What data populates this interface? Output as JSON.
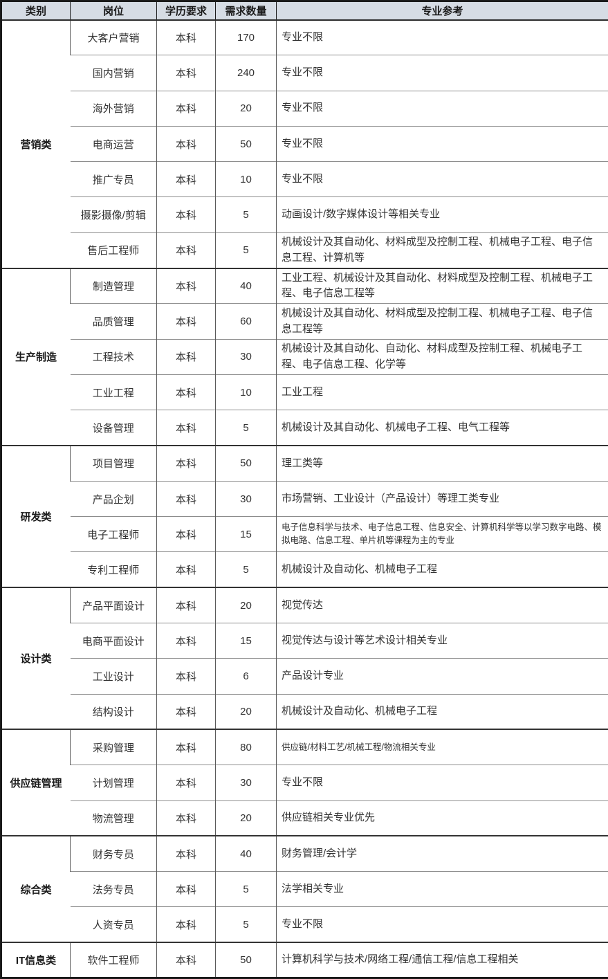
{
  "table": {
    "headers": [
      "类别",
      "岗位",
      "学历要求",
      "需求数量",
      "专业参考"
    ],
    "sections": [
      {
        "category": "营销类",
        "rows": [
          {
            "position": "大客户营销",
            "education": "本科",
            "count": "170",
            "majors": "专业不限",
            "small_text": false
          },
          {
            "position": "国内营销",
            "education": "本科",
            "count": "240",
            "majors": "专业不限",
            "small_text": false
          },
          {
            "position": "海外营销",
            "education": "本科",
            "count": "20",
            "majors": "专业不限",
            "small_text": false
          },
          {
            "position": "电商运营",
            "education": "本科",
            "count": "50",
            "majors": "专业不限",
            "small_text": false
          },
          {
            "position": "推广专员",
            "education": "本科",
            "count": "10",
            "majors": "专业不限",
            "small_text": false
          },
          {
            "position": "摄影摄像/剪辑",
            "education": "本科",
            "count": "5",
            "majors": "动画设计/数字媒体设计等相关专业",
            "small_text": false
          },
          {
            "position": "售后工程师",
            "education": "本科",
            "count": "5",
            "majors": "机械设计及其自动化、材料成型及控制工程、机械电子工程、电子信息工程、计算机等",
            "small_text": false
          }
        ]
      },
      {
        "category": "生产制造",
        "rows": [
          {
            "position": "制造管理",
            "education": "本科",
            "count": "40",
            "majors": "工业工程、机械设计及其自动化、材料成型及控制工程、机械电子工程、电子信息工程等",
            "small_text": false
          },
          {
            "position": "品质管理",
            "education": "本科",
            "count": "60",
            "majors": "机械设计及其自动化、材料成型及控制工程、机械电子工程、电子信息工程等",
            "small_text": false
          },
          {
            "position": "工程技术",
            "education": "本科",
            "count": "30",
            "majors": "机械设计及其自动化、自动化、材料成型及控制工程、机械电子工程、电子信息工程、化学等",
            "small_text": false
          },
          {
            "position": "工业工程",
            "education": "本科",
            "count": "10",
            "majors": "工业工程",
            "small_text": false
          },
          {
            "position": "设备管理",
            "education": "本科",
            "count": "5",
            "majors": "机械设计及其自动化、机械电子工程、电气工程等",
            "small_text": false
          }
        ]
      },
      {
        "category": "研发类",
        "rows": [
          {
            "position": "项目管理",
            "education": "本科",
            "count": "50",
            "majors": "理工类等",
            "small_text": false
          },
          {
            "position": "产品企划",
            "education": "本科",
            "count": "30",
            "majors": "市场营销、工业设计（产品设计）等理工类专业",
            "small_text": false
          },
          {
            "position": "电子工程师",
            "education": "本科",
            "count": "15",
            "majors": "电子信息科学与技术、电子信息工程、信息安全、计算机科学等以学习数字电路、模拟电路、信息工程、单片机等课程为主的专业",
            "small_text": true
          },
          {
            "position": "专利工程师",
            "education": "本科",
            "count": "5",
            "majors": "机械设计及自动化、机械电子工程",
            "small_text": false
          }
        ]
      },
      {
        "category": "设计类",
        "rows": [
          {
            "position": "产品平面设计",
            "education": "本科",
            "count": "20",
            "majors": "视觉传达",
            "small_text": false
          },
          {
            "position": "电商平面设计",
            "education": "本科",
            "count": "15",
            "majors": "视觉传达与设计等艺术设计相关专业",
            "small_text": false
          },
          {
            "position": "工业设计",
            "education": "本科",
            "count": "6",
            "majors": "产品设计专业",
            "small_text": false
          },
          {
            "position": "结构设计",
            "education": "本科",
            "count": "20",
            "majors": "机械设计及自动化、机械电子工程",
            "small_text": false
          }
        ]
      },
      {
        "category": "供应链管理",
        "rows": [
          {
            "position": "采购管理",
            "education": "本科",
            "count": "80",
            "majors": "供应链/材料工艺/机械工程/物流相关专业",
            "small_text": true
          },
          {
            "position": "计划管理",
            "education": "本科",
            "count": "30",
            "majors": "专业不限",
            "small_text": false
          },
          {
            "position": "物流管理",
            "education": "本科",
            "count": "20",
            "majors": "供应链相关专业优先",
            "small_text": false
          }
        ]
      },
      {
        "category": "综合类",
        "rows": [
          {
            "position": "财务专员",
            "education": "本科",
            "count": "40",
            "majors": "财务管理/会计学",
            "small_text": false
          },
          {
            "position": "法务专员",
            "education": "本科",
            "count": "5",
            "majors": "法学相关专业",
            "small_text": false
          },
          {
            "position": "人资专员",
            "education": "本科",
            "count": "5",
            "majors": "专业不限",
            "small_text": false
          }
        ]
      },
      {
        "category": "IT信息类",
        "rows": [
          {
            "position": "软件工程师",
            "education": "本科",
            "count": "50",
            "majors": "计算机科学与技术/网络工程/通信工程/信息工程相关",
            "small_text": false
          }
        ]
      }
    ]
  },
  "colors": {
    "header_background": "#d6dce4",
    "outer_border": "#1a1a1a",
    "section_divider": "#333333",
    "row_divider": "#8c8c8c",
    "column_divider": "#595959",
    "text": "#333333"
  }
}
